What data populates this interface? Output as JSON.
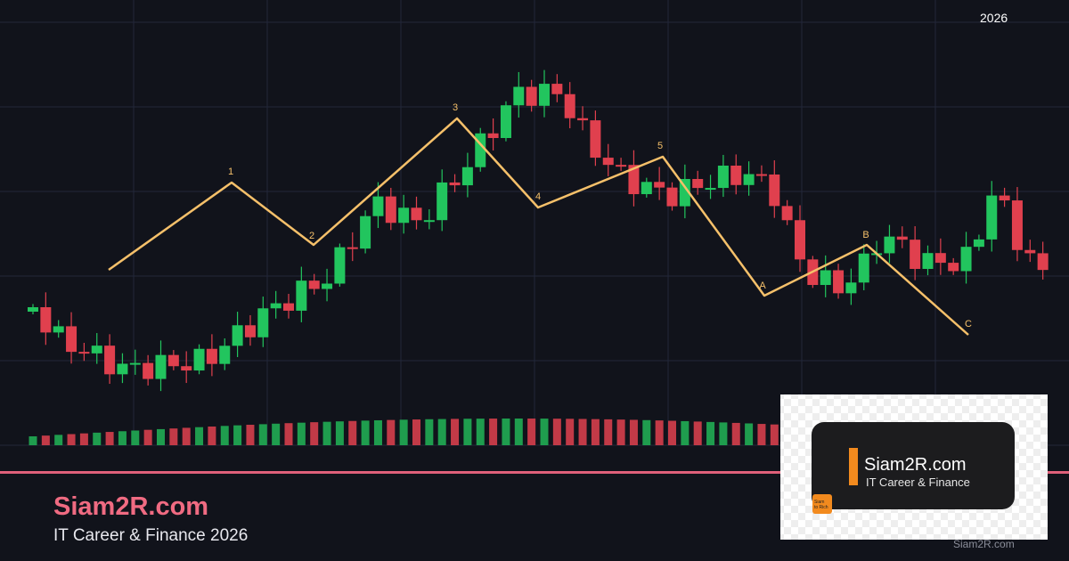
{
  "header": {
    "year": "2026"
  },
  "waves": [
    "1",
    "2",
    "3",
    "4",
    "5",
    "A",
    "B",
    "C"
  ],
  "brand": {
    "name": "Siam2R.com",
    "tagline": "IT Career & Finance 2026"
  },
  "logo": {
    "name": "Siam2R.com",
    "tagline": "IT Career & Finance",
    "badge": [
      "Siam",
      "to Rich"
    ]
  },
  "watermark": "Siam2R.com"
}
